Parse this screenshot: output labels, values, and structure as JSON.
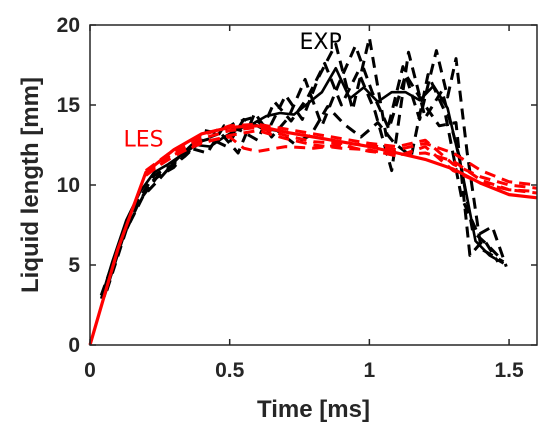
{
  "chart_data": {
    "type": "line",
    "xlabel": "Time [ms]",
    "ylabel": "Liquid length [mm]",
    "xlim": [
      0,
      1.6
    ],
    "ylim": [
      0,
      20
    ],
    "xticks": [
      0,
      0.5,
      1,
      1.5
    ],
    "xtick_labels": [
      "0",
      "0.5",
      "1",
      "1.5"
    ],
    "yticks": [
      0,
      5,
      10,
      15,
      20
    ],
    "ytick_labels": [
      "0",
      "5",
      "10",
      "15",
      "20"
    ],
    "grid": false,
    "annotations": [
      {
        "text": "EXP",
        "x": 0.75,
        "y": 18.5,
        "color": "#000000"
      },
      {
        "text": "LES",
        "x": 0.12,
        "y": 12.4,
        "color": "#ff0000"
      }
    ],
    "series": [
      {
        "group": "EXP",
        "style": "solid",
        "color": "#000000",
        "x": [
          0.04,
          0.08,
          0.13,
          0.18,
          0.23,
          0.28,
          0.33,
          0.38,
          0.43,
          0.48,
          0.53,
          0.58,
          0.63,
          0.68,
          0.73,
          0.78,
          0.83,
          0.88,
          0.93,
          0.98,
          1.03,
          1.08,
          1.13,
          1.18,
          1.23,
          1.28,
          1.33,
          1.38,
          1.43,
          1.48
        ],
        "y": [
          2.9,
          5.2,
          7.8,
          9.6,
          10.8,
          11.3,
          11.9,
          12.5,
          12.4,
          13.0,
          13.5,
          13.8,
          14.3,
          14.5,
          14.4,
          15.1,
          15.8,
          17.3,
          15.4,
          16.1,
          15.2,
          15.8,
          15.8,
          15.3,
          16.2,
          14.8,
          11.0,
          6.5,
          5.6,
          5.1
        ]
      },
      {
        "group": "EXP",
        "style": "dashed",
        "color": "#000000",
        "x": [
          0.04,
          0.1,
          0.16,
          0.22,
          0.28,
          0.34,
          0.4,
          0.46,
          0.52,
          0.58,
          0.64,
          0.7,
          0.76,
          0.82,
          0.88,
          0.94,
          1.0,
          1.06,
          1.12,
          1.18,
          1.24,
          1.28,
          1.31,
          1.35,
          1.4,
          1.45,
          1.48
        ],
        "y": [
          3.1,
          6.0,
          8.5,
          10.2,
          11.0,
          11.8,
          12.8,
          13.2,
          13.9,
          14.2,
          13.5,
          15.6,
          14.1,
          16.8,
          18.8,
          14.7,
          19.2,
          13.1,
          17.4,
          14.1,
          18.4,
          15.5,
          17.9,
          12.0,
          6.0,
          5.5,
          5.2
        ]
      },
      {
        "group": "EXP",
        "style": "dashed",
        "color": "#000000",
        "x": [
          0.05,
          0.11,
          0.17,
          0.23,
          0.29,
          0.35,
          0.41,
          0.47,
          0.53,
          0.59,
          0.65,
          0.71,
          0.77,
          0.83,
          0.89,
          0.95,
          1.01,
          1.07,
          1.13,
          1.19,
          1.25,
          1.31,
          1.36,
          1.41,
          1.46
        ],
        "y": [
          3.2,
          6.5,
          9.0,
          10.6,
          11.2,
          12.0,
          13.4,
          13.2,
          12.0,
          14.5,
          13.0,
          14.2,
          16.6,
          13.7,
          16.3,
          18.7,
          15.8,
          13.5,
          16.9,
          15.2,
          13.7,
          13.9,
          5.6,
          6.6,
          5.2
        ]
      },
      {
        "group": "EXP",
        "style": "dashed",
        "color": "#000000",
        "x": [
          0.05,
          0.12,
          0.18,
          0.24,
          0.3,
          0.36,
          0.42,
          0.48,
          0.54,
          0.6,
          0.66,
          0.72,
          0.78,
          0.84,
          0.9,
          0.96,
          1.02,
          1.08,
          1.14,
          1.2,
          1.26,
          1.32,
          1.37,
          1.42,
          1.47
        ],
        "y": [
          3.0,
          6.8,
          9.1,
          10.5,
          11.1,
          12.3,
          12.0,
          13.7,
          13.4,
          12.8,
          15.2,
          14.0,
          15.5,
          17.6,
          15.0,
          17.1,
          14.6,
          10.9,
          18.3,
          14.2,
          15.9,
          11.9,
          7.1,
          6.3,
          5.4
        ]
      },
      {
        "group": "EXP",
        "style": "dashed",
        "color": "#000000",
        "x": [
          0.06,
          0.13,
          0.19,
          0.25,
          0.31,
          0.37,
          0.43,
          0.49,
          0.55,
          0.61,
          0.67,
          0.73,
          0.79,
          0.85,
          0.91,
          0.97,
          1.03,
          1.09,
          1.15,
          1.21,
          1.27,
          1.33,
          1.39,
          1.44,
          1.49
        ],
        "y": [
          3.4,
          7.2,
          9.3,
          10.4,
          11.6,
          12.6,
          12.9,
          12.4,
          14.1,
          13.6,
          13.4,
          12.6,
          13.1,
          14.9,
          13.8,
          13.0,
          13.9,
          12.6,
          11.8,
          16.9,
          14.6,
          9.2,
          6.9,
          7.4,
          4.9
        ]
      },
      {
        "group": "LES",
        "style": "solid",
        "color": "#ff0000",
        "x": [
          0.0,
          0.1,
          0.2,
          0.3,
          0.4,
          0.5,
          0.6,
          0.7,
          0.8,
          0.9,
          1.0,
          1.1,
          1.2,
          1.3,
          1.4,
          1.5,
          1.6
        ],
        "y": [
          0.0,
          6.0,
          10.8,
          12.2,
          13.2,
          13.6,
          13.7,
          13.3,
          13.0,
          12.7,
          12.4,
          12.0,
          11.6,
          11.0,
          10.1,
          9.4,
          9.2
        ]
      },
      {
        "group": "LES",
        "style": "dashed",
        "color": "#ff0000",
        "x": [
          0.2,
          0.3,
          0.4,
          0.5,
          0.6,
          0.7,
          0.8,
          0.9,
          1.0,
          1.1,
          1.2,
          1.3,
          1.4,
          1.5,
          1.6
        ],
        "y": [
          10.8,
          12.0,
          12.9,
          13.4,
          13.6,
          13.1,
          12.7,
          12.6,
          12.5,
          12.2,
          12.6,
          12.0,
          10.9,
          10.2,
          10.0
        ]
      },
      {
        "group": "LES",
        "style": "dashed",
        "color": "#ff0000",
        "x": [
          0.2,
          0.3,
          0.4,
          0.5,
          0.55,
          0.6,
          0.7,
          0.8,
          0.9,
          1.0,
          1.1,
          1.2,
          1.3,
          1.4,
          1.5,
          1.6
        ],
        "y": [
          10.7,
          11.8,
          12.7,
          13.0,
          12.3,
          12.1,
          12.4,
          12.3,
          12.5,
          12.1,
          11.9,
          12.0,
          11.5,
          10.3,
          9.7,
          9.6
        ]
      },
      {
        "group": "LES",
        "style": "dashed",
        "color": "#ff0000",
        "x": [
          0.2,
          0.3,
          0.4,
          0.5,
          0.6,
          0.7,
          0.8,
          0.9,
          1.0,
          1.1,
          1.2,
          1.3,
          1.4,
          1.5,
          1.6
        ],
        "y": [
          10.9,
          12.2,
          13.1,
          13.7,
          13.8,
          13.5,
          13.2,
          12.9,
          12.6,
          12.4,
          12.8,
          11.3,
          10.5,
          10.0,
          9.8
        ]
      },
      {
        "group": "LES",
        "style": "dashed",
        "color": "#ff0000",
        "x": [
          0.2,
          0.3,
          0.4,
          0.5,
          0.6,
          0.7,
          0.8,
          0.9,
          1.0,
          1.1,
          1.2,
          1.3,
          1.4,
          1.5,
          1.6
        ],
        "y": [
          10.6,
          11.9,
          12.6,
          13.1,
          13.4,
          12.9,
          12.5,
          12.3,
          12.2,
          11.8,
          12.4,
          10.9,
          10.1,
          9.7,
          9.5
        ]
      }
    ]
  }
}
